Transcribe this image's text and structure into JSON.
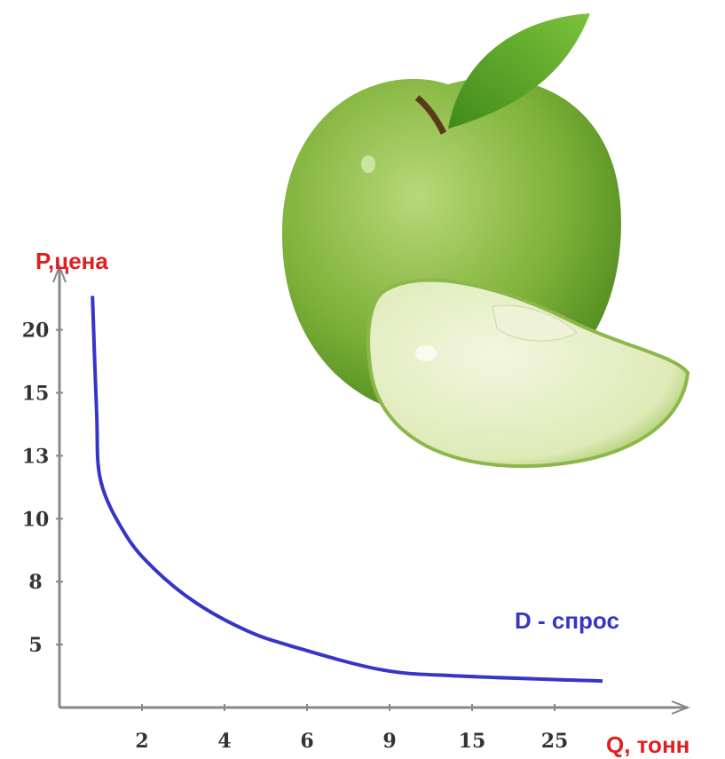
{
  "chart_data": {
    "type": "line",
    "y_label": "P,цена",
    "x_label": "Q, тонн",
    "series": [
      {
        "name": "D - спрос",
        "color": "#3535c8",
        "x": [
          0.8,
          0.9,
          1.0,
          1.6,
          2.3,
          3.3,
          4.5,
          5.6,
          8.7,
          14.1,
          30.8
        ],
        "values": [
          22.7,
          14.4,
          11.8,
          9.5,
          8.4,
          7.0,
          5.7,
          4.9,
          3.0,
          2.5,
          2.1
        ]
      }
    ],
    "xlim": [
      0,
      35
    ],
    "xticks": [
      2,
      4,
      6,
      9,
      15,
      25
    ],
    "ylim": [
      0,
      25
    ],
    "yticks": [
      5,
      8,
      10,
      13,
      15,
      20
    ],
    "label_color": "#e02020",
    "axis_color": "#888888"
  }
}
